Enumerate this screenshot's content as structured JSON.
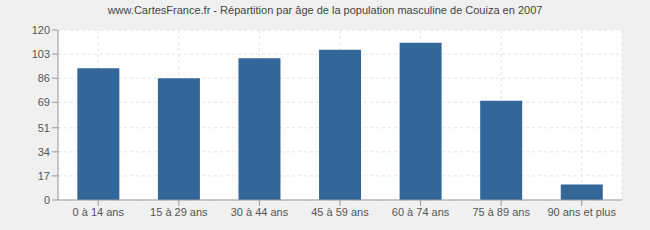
{
  "chart_data": {
    "type": "bar",
    "title": "www.CartesFrance.fr - Répartition par âge de la population masculine de Couiza en 2007",
    "categories": [
      "0 à 14 ans",
      "15 à 29 ans",
      "30 à 44 ans",
      "45 à 59 ans",
      "60 à 74 ans",
      "75 à 89 ans",
      "90 ans et plus"
    ],
    "values": [
      93,
      86,
      100,
      106,
      111,
      70,
      11
    ],
    "color": "#336699",
    "ylim": [
      0,
      120
    ],
    "yticks": [
      0,
      17,
      34,
      51,
      69,
      86,
      103,
      120
    ],
    "grid": true
  }
}
